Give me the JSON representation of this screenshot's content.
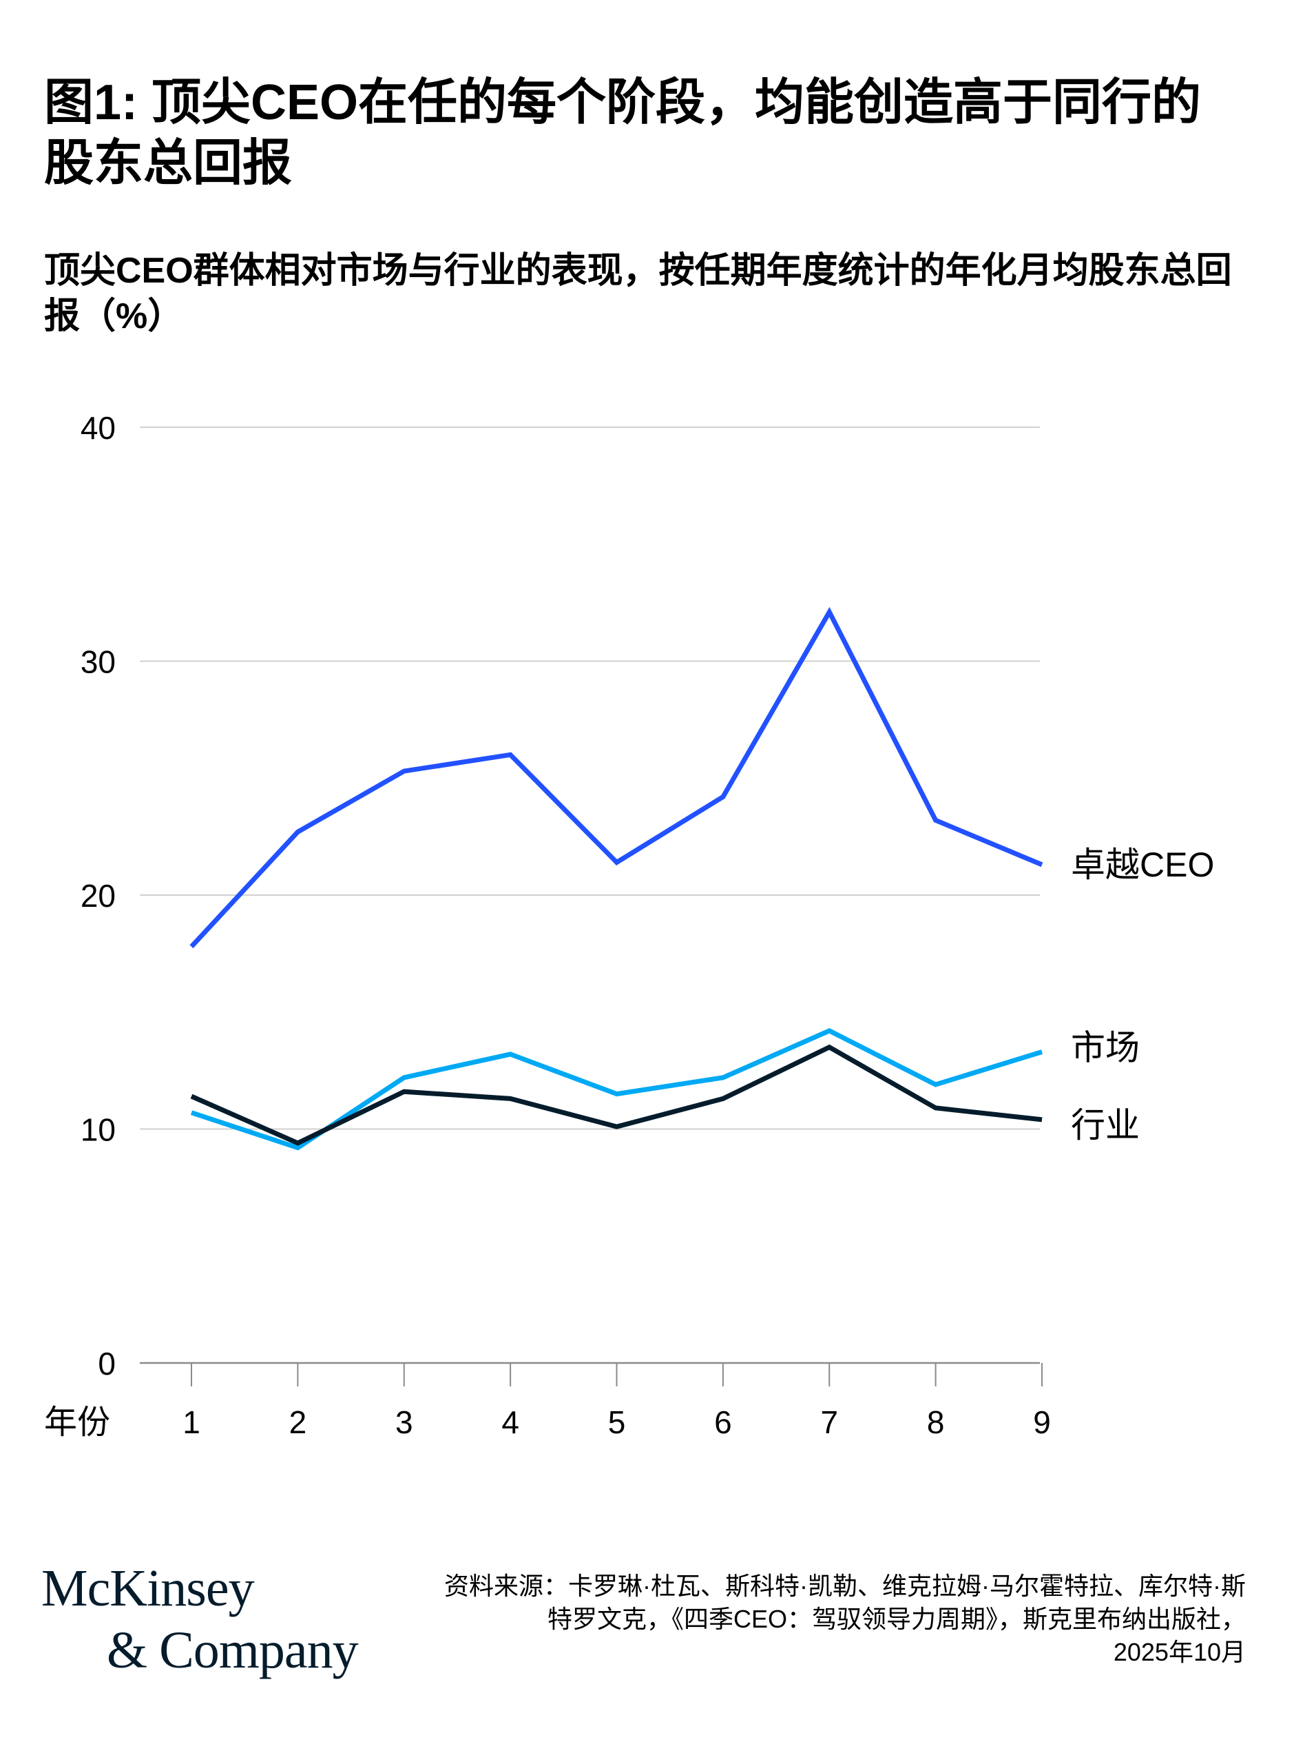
{
  "title": "图1: 顶尖CEO在任的每个阶段，均能创造高于同行的股东总回报",
  "subtitle": "顶尖CEO群体相对市场与行业的表现，按任期年度统计的年化月均股东总回报（%）",
  "chart_data": {
    "type": "line",
    "x": [
      1,
      2,
      3,
      4,
      5,
      6,
      7,
      8,
      9
    ],
    "xlabel": "年份",
    "ylabel": "",
    "ylim": [
      0,
      40
    ],
    "yticks": [
      0,
      10,
      20,
      30,
      40
    ],
    "grid": true,
    "series": [
      {
        "name": "卓越CEO",
        "color": "#2251ff",
        "values": [
          17.8,
          22.7,
          25.3,
          26.0,
          21.4,
          24.2,
          32.1,
          23.2,
          21.3
        ]
      },
      {
        "name": "市场",
        "color": "#00a9f4",
        "values": [
          10.7,
          9.2,
          12.2,
          13.2,
          11.5,
          12.2,
          14.2,
          11.9,
          13.3
        ]
      },
      {
        "name": "行业",
        "color": "#051c2c",
        "values": [
          11.4,
          9.4,
          11.6,
          11.3,
          10.1,
          11.3,
          13.5,
          10.9,
          10.4
        ]
      }
    ]
  },
  "logo": {
    "line1": "McKinsey",
    "line2": "& Company"
  },
  "source": {
    "text": "资料来源：卡罗琳·杜瓦、斯科特·凯勒、维克拉姆·马尔霍特拉、库尔特·斯特罗文克，《四季CEO：驾驭领导力周期》，斯克里布纳出版社，",
    "date": "2025年10月"
  }
}
